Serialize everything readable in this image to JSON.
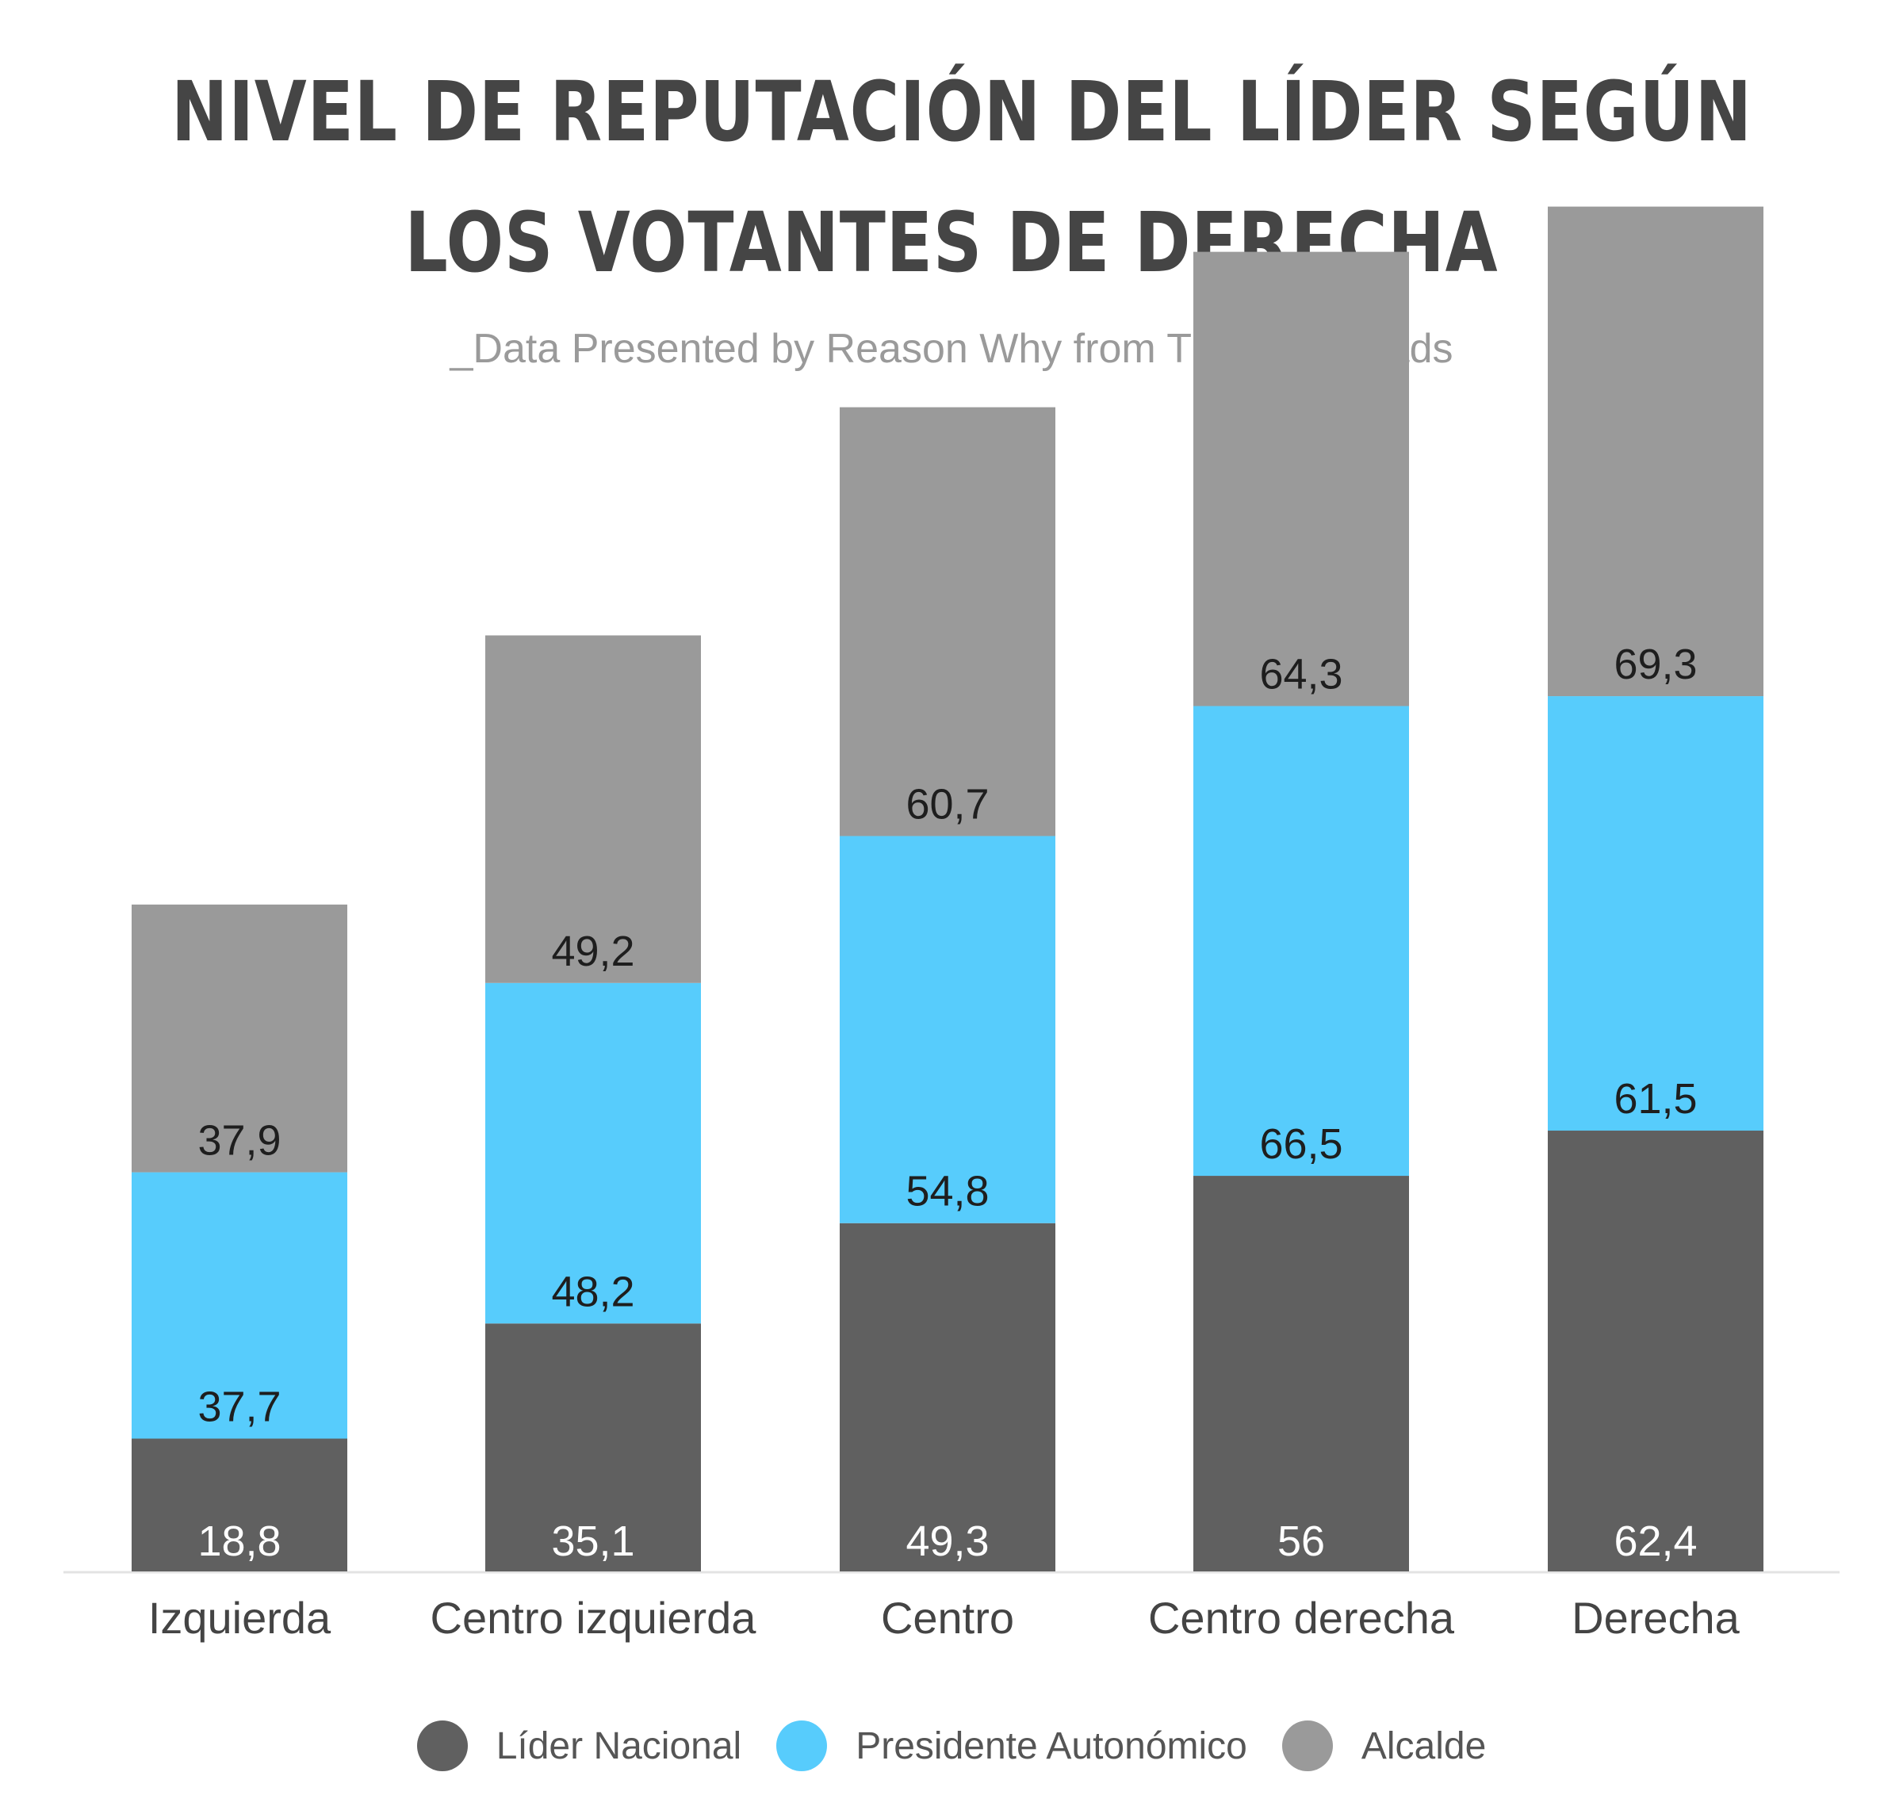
{
  "title_line1": "NIVEL DE REPUTACIÓN DEL LÍDER SEGÚN",
  "title_line2": "LOS VOTANTES DE DERECHA",
  "subtitle": "_Data Presented by Reason Why from Thinking Heads",
  "colors": {
    "lider_nacional": "#606060",
    "presidente_autonomico": "#57ccfc",
    "alcalde": "#9a9a9a"
  },
  "chart_data": {
    "type": "bar",
    "stacked": true,
    "title": "NIVEL DE REPUTACIÓN DEL LÍDER SEGÚN LOS VOTANTES DE DERECHA",
    "subtitle": "_Data Presented by Reason Why from Thinking Heads",
    "categories": [
      "Izquierda",
      "Centro izquierda",
      "Centro",
      "Centro derecha",
      "Derecha"
    ],
    "series": [
      {
        "name": "Líder Nacional",
        "values": [
          18.8,
          35.1,
          49.3,
          56,
          62.4
        ],
        "labels": [
          "18,8",
          "35,1",
          "49,3",
          "56",
          "62,4"
        ],
        "color": "#606060"
      },
      {
        "name": "Presidente Autonómico",
        "values": [
          37.7,
          48.2,
          54.8,
          66.5,
          61.5
        ],
        "labels": [
          "37,7",
          "48,2",
          "54,8",
          "66,5",
          "61,5"
        ],
        "color": "#57ccfc"
      },
      {
        "name": "Alcalde",
        "values": [
          37.9,
          49.2,
          60.7,
          64.3,
          69.3
        ],
        "labels": [
          "37,9",
          "49,2",
          "60,7",
          "64,3",
          "69,3"
        ],
        "color": "#9a9a9a"
      }
    ],
    "xlabel": "",
    "ylabel": "",
    "ylim": [
      0,
      200
    ],
    "grid": false,
    "legend": "bottom"
  }
}
